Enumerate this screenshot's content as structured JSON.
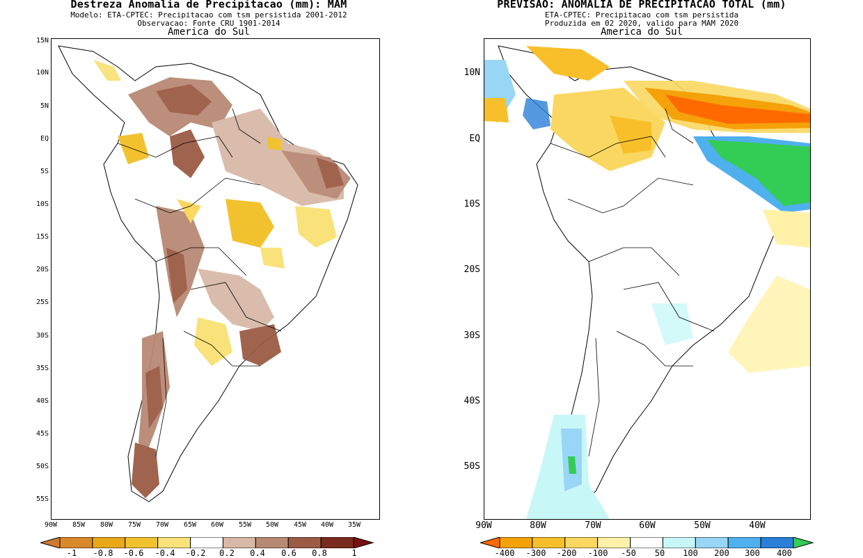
{
  "left": {
    "title": "Destreza Anomalia de Precipitacao (mm): MAM",
    "subtitle1": "Modelo: ETA-CPTEC: Precipitacao com tsm persistida 2001-2012",
    "subtitle2": "Observacao: Fonte CRU 1901-2014",
    "region": "America do Sul",
    "lat_labels": [
      "15N",
      "10N",
      "5N",
      "EQ",
      "5S",
      "10S",
      "15S",
      "20S",
      "25S",
      "30S",
      "35S",
      "40S",
      "45S",
      "50S",
      "55S"
    ],
    "lon_labels": [
      "90W",
      "85W",
      "80W",
      "75W",
      "70W",
      "65W",
      "60W",
      "55W",
      "50W",
      "45W",
      "40W",
      "35W"
    ],
    "colorbar": {
      "labels": [
        "-1",
        "-0.8",
        "-0.6",
        "-0.4",
        "-0.2",
        "0.2",
        "0.4",
        "0.6",
        "0.8",
        "1"
      ],
      "colors": [
        "#d9892b",
        "#e8a817",
        "#f2c12e",
        "#f9e27a",
        "#ffffff",
        "#d8b9a8",
        "#b88a74",
        "#9b5b45",
        "#7a2a1e"
      ],
      "under_color": "#d07a30",
      "over_color": "#7a1010"
    }
  },
  "right": {
    "title": "PREVISAO: ANOMALIA DE PRECIPITACAO TOTAL (mm)",
    "subtitle1": "ETA-CPTEC: Precipitacao com tsm persistida",
    "subtitle2": "Produzida em 02 2020, valido para MAM 2020",
    "region": "America do Sul",
    "lat_labels": [
      "10N",
      "EQ",
      "10S",
      "20S",
      "30S",
      "40S",
      "50S"
    ],
    "lon_labels": [
      "90W",
      "80W",
      "70W",
      "60W",
      "50W",
      "40W"
    ],
    "colorbar": {
      "labels": [
        "-400",
        "-300",
        "-200",
        "-100",
        "-50",
        "50",
        "100",
        "200",
        "300",
        "400"
      ],
      "colors": [
        "#f5a10a",
        "#f8bf2a",
        "#fad760",
        "#fff2a8",
        "#ffffff",
        "#c8f7f8",
        "#99d6f5",
        "#4fb0ee",
        "#2a7fd8"
      ],
      "under_color": "#ff6a00",
      "over_color": "#33cc55"
    }
  },
  "colors": {
    "coast": "#000000",
    "land_white": "#ffffff"
  }
}
